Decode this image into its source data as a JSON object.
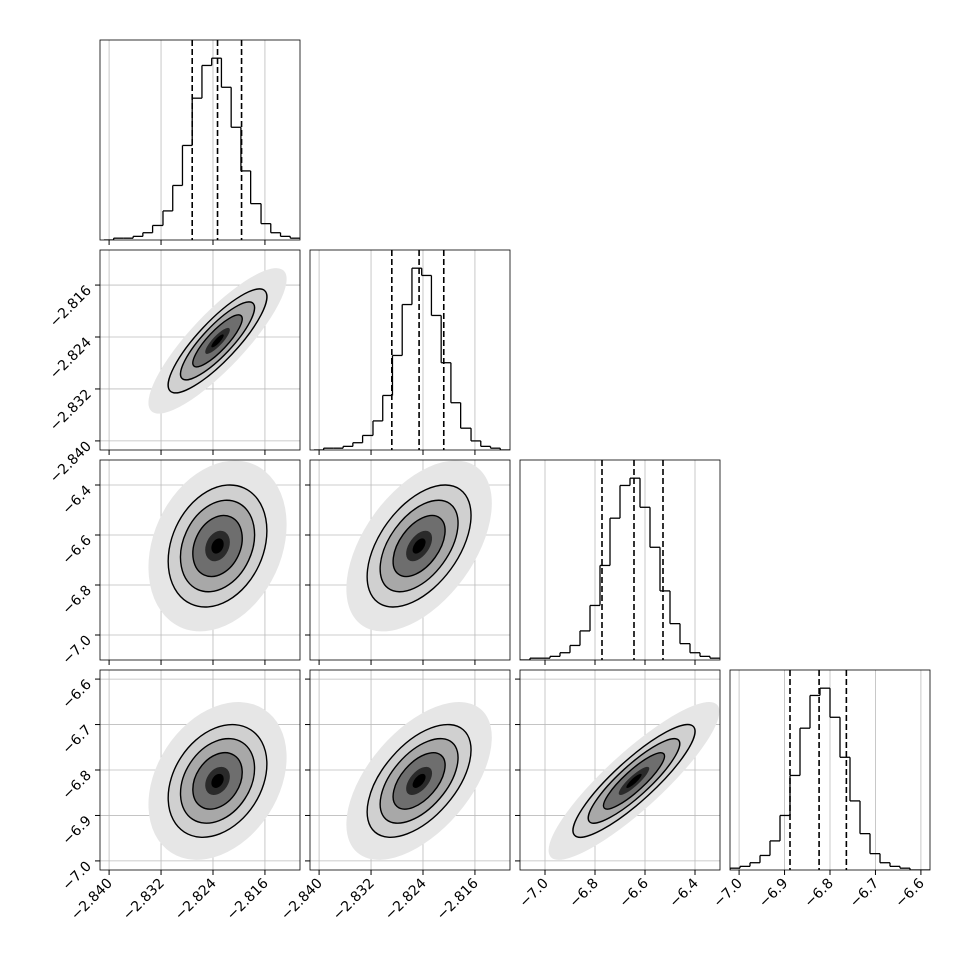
{
  "chart_data": {
    "type": "corner",
    "parameters": [
      {
        "lim": [
          -2.8414,
          -2.8106
        ],
        "ticks": [
          {
            "value": -2.84,
            "label": "−2.840"
          },
          {
            "value": -2.832,
            "label": "−2.832"
          },
          {
            "value": -2.824,
            "label": "−2.824"
          },
          {
            "value": -2.816,
            "label": "−2.816"
          }
        ],
        "bins": [
          -2.8408,
          -2.8393,
          -2.8378,
          -2.8363,
          -2.8348,
          -2.8333,
          -2.8317,
          -2.8302,
          -2.8287,
          -2.8272,
          -2.8257,
          -2.8242,
          -2.8227,
          -2.8212,
          -2.8197,
          -2.8182,
          -2.8166,
          -2.8151,
          -2.8136,
          -2.8121,
          -2.8106
        ],
        "counts": [
          0,
          1,
          1,
          2,
          4,
          8,
          16,
          30,
          52,
          78,
          96,
          100,
          84,
          62,
          38,
          20,
          9,
          4,
          2,
          1
        ],
        "quantiles": [
          -2.8272,
          -2.8233,
          -2.8196
        ]
      },
      {
        "lim": [
          -2.8414,
          -2.8106
        ],
        "ticks": [
          {
            "value": -2.84,
            "label": "−2.840"
          },
          {
            "value": -2.832,
            "label": "−2.832"
          },
          {
            "value": -2.824,
            "label": "−2.824"
          },
          {
            "value": -2.816,
            "label": "−2.816"
          }
        ],
        "bins": [
          -2.8408,
          -2.8393,
          -2.8378,
          -2.8363,
          -2.8348,
          -2.8333,
          -2.8317,
          -2.8302,
          -2.8287,
          -2.8272,
          -2.8257,
          -2.8242,
          -2.8227,
          -2.8212,
          -2.8197,
          -2.8182,
          -2.8166,
          -2.8151,
          -2.8136,
          -2.8121,
          -2.8106
        ],
        "counts": [
          0,
          1,
          1,
          2,
          4,
          8,
          16,
          30,
          52,
          80,
          100,
          96,
          74,
          48,
          26,
          12,
          5,
          2,
          1,
          0
        ],
        "quantiles": [
          -2.8288,
          -2.8246,
          -2.8208
        ]
      },
      {
        "lim": [
          -7.1,
          -6.3
        ],
        "ticks": [
          {
            "value": -7.0,
            "label": "−7.0"
          },
          {
            "value": -6.8,
            "label": "−6.8"
          },
          {
            "value": -6.6,
            "label": "−6.6"
          },
          {
            "value": -6.4,
            "label": "−6.4"
          }
        ],
        "bins": [
          -7.1,
          -7.06,
          -7.02,
          -6.98,
          -6.94,
          -6.9,
          -6.86,
          -6.82,
          -6.78,
          -6.74,
          -6.7,
          -6.66,
          -6.62,
          -6.58,
          -6.54,
          -6.5,
          -6.46,
          -6.42,
          -6.38,
          -6.34,
          -6.3
        ],
        "counts": [
          0,
          1,
          1,
          2,
          4,
          8,
          16,
          30,
          52,
          78,
          96,
          100,
          84,
          62,
          38,
          20,
          9,
          4,
          2,
          1
        ],
        "quantiles": [
          -6.772,
          -6.644,
          -6.528
        ]
      },
      {
        "lim": [
          -7.02,
          -6.58
        ],
        "ticks": [
          {
            "value": -7.0,
            "label": "−7.0"
          },
          {
            "value": -6.9,
            "label": "−6.9"
          },
          {
            "value": -6.8,
            "label": "−6.8"
          },
          {
            "value": -6.7,
            "label": "−6.7"
          },
          {
            "value": -6.6,
            "label": "−6.6"
          }
        ],
        "bins": [
          -7.02,
          -6.998,
          -6.976,
          -6.954,
          -6.932,
          -6.91,
          -6.888,
          -6.866,
          -6.844,
          -6.822,
          -6.8,
          -6.778,
          -6.756,
          -6.734,
          -6.712,
          -6.69,
          -6.668,
          -6.646,
          -6.624,
          -6.602,
          -6.58
        ],
        "counts": [
          1,
          2,
          4,
          8,
          16,
          30,
          52,
          78,
          96,
          100,
          84,
          62,
          38,
          20,
          9,
          4,
          2,
          1,
          0,
          0
        ],
        "quantiles": [
          -6.888,
          -6.824,
          -6.764
        ]
      }
    ],
    "hist_ylim": [
      0,
      110
    ],
    "pairs": [
      {
        "x": 0,
        "y": 1,
        "corr": 0.85
      },
      {
        "x": 0,
        "y": 2,
        "corr": 0.25
      },
      {
        "x": 1,
        "y": 2,
        "corr": 0.5
      },
      {
        "x": 0,
        "y": 3,
        "corr": 0.3
      },
      {
        "x": 1,
        "y": 3,
        "corr": 0.55
      },
      {
        "x": 2,
        "y": 3,
        "corr": 0.88
      }
    ]
  }
}
